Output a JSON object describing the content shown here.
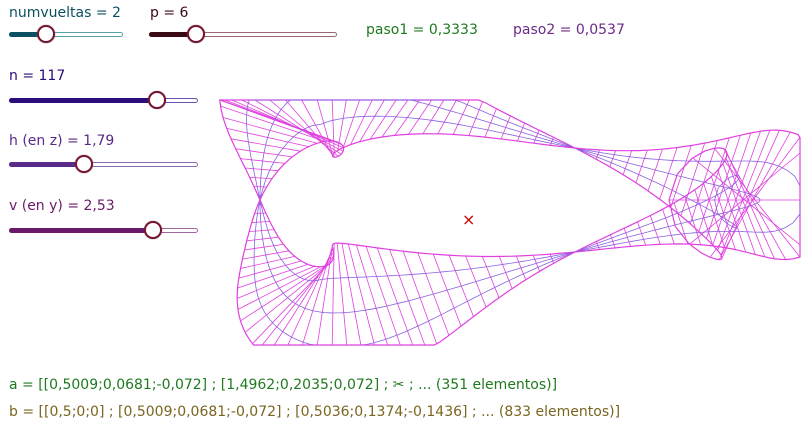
{
  "sliders": [
    {
      "id": "numvueltas",
      "label": "numvueltas = 2",
      "value": 2,
      "fraction": 0.33,
      "color": "#0a5060",
      "track_color": "#5aa0a8"
    },
    {
      "id": "p",
      "label": "p = 6",
      "value": 6,
      "fraction": 0.25,
      "color": "#3a0a14",
      "track_color": "#9a6870"
    },
    {
      "id": "n",
      "label": "n = 117",
      "value": 117,
      "fraction": 0.79,
      "color": "#2a0c7a",
      "track_color": "#6a50b0"
    },
    {
      "id": "h",
      "label": "h (en z) = 1,79",
      "value": 1.79,
      "fraction": 0.4,
      "color": "#5a2a88",
      "track_color": "#8a6ab0"
    },
    {
      "id": "v",
      "label": "v (en y) = 2,53",
      "value": 2.53,
      "fraction": 0.76,
      "color": "#6a1a6a",
      "track_color": "#a066a0"
    }
  ],
  "values": {
    "paso1": "paso1 = 0,3333",
    "paso2": "paso2 = 0,0537"
  },
  "lists": {
    "a": "a = [[0,5009;0,0681;-0,072] ; [1,4962;0,2035;0,072] ; ✂ ; ... (351 elementos)]",
    "b": "b = [[0,5;0;0] ; [0,5009;0,0681;-0,072] ; [0,5036;0,1374;-0,1436] ; ... (833 elementos)]"
  },
  "colors": {
    "green_text": "#1f7a1f",
    "purple_text": "#6b2a88",
    "olive_text": "#7a6520",
    "teal_text": "#0a5060",
    "navy_text": "#2a0c7a",
    "mesh_pink": "#e040e0",
    "mesh_violet": "#8a60e0",
    "origin_mark": "#cc0000"
  },
  "icons": {
    "origin": "x-mark-icon",
    "origin_glyph": "×"
  }
}
